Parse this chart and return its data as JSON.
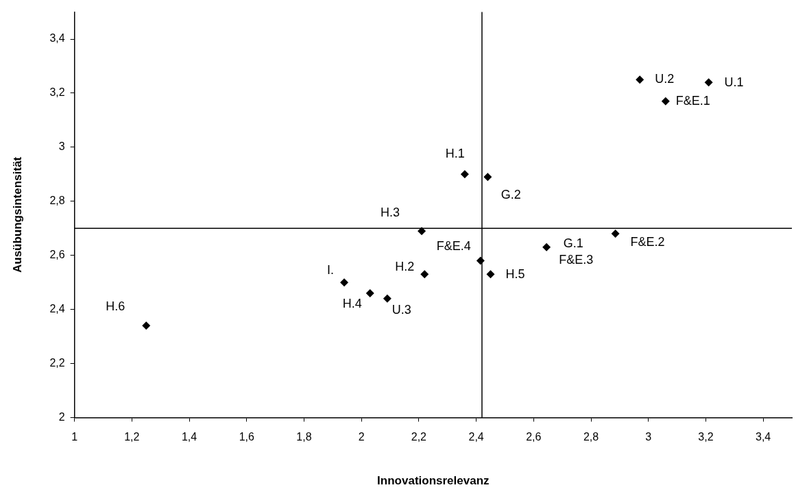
{
  "chart_data": {
    "type": "scatter",
    "xlabel": "Innovationsrelevanz",
    "ylabel": "Ausübungsintensität",
    "x": [
      1.25,
      1.94,
      2.03,
      2.09,
      2.22,
      2.36,
      2.44,
      2.21,
      2.415,
      2.45,
      2.645,
      2.885,
      2.97,
      3.21,
      3.06
    ],
    "series": [
      {
        "color": "#000000",
        "values": [
          2.34,
          2.5,
          2.46,
          2.44,
          2.53,
          2.9,
          2.89,
          2.69,
          2.58,
          2.53,
          2.63,
          2.68,
          3.25,
          3.24,
          3.17
        ]
      }
    ],
    "annotations": [
      {
        "text": "H.6",
        "x": 1.25,
        "y": 2.34
      },
      {
        "text": "I.",
        "x": 1.94,
        "y": 2.5
      },
      {
        "text": "H.4",
        "x": 2.03,
        "y": 2.46
      },
      {
        "text": "U.3",
        "x": 2.09,
        "y": 2.44
      },
      {
        "text": "H.2",
        "x": 2.22,
        "y": 2.53
      },
      {
        "text": "H.1",
        "x": 2.36,
        "y": 2.9
      },
      {
        "text": "G.2",
        "x": 2.44,
        "y": 2.89
      },
      {
        "text": "H.3",
        "x": 2.21,
        "y": 2.69
      },
      {
        "text": "F&E.4",
        "x": 2.415,
        "y": 2.58
      },
      {
        "text": "H.5",
        "x": 2.45,
        "y": 2.53
      },
      {
        "text": "G.1",
        "x": 2.645,
        "y": 2.63
      },
      {
        "text": "F&E.3",
        "x": 2.645,
        "y": 2.63
      },
      {
        "text": "F&E.2",
        "x": 2.885,
        "y": 2.68
      },
      {
        "text": "U.2",
        "x": 2.97,
        "y": 3.25
      },
      {
        "text": "U.1",
        "x": 3.21,
        "y": 3.24
      },
      {
        "text": "F&E.1",
        "x": 3.06,
        "y": 3.17
      }
    ],
    "ref_lines": [
      {
        "axis": "x",
        "value": 2.42,
        "color": "#000000"
      },
      {
        "axis": "y",
        "value": 2.7,
        "color": "#000000"
      }
    ],
    "xlim": [
      1,
      3.5
    ],
    "xticks": [
      1,
      {
        "value": 1.2,
        "label": "1,2"
      },
      {
        "value": 1.4,
        "label": "1,4"
      },
      {
        "value": 1.6,
        "label": "1,6"
      },
      {
        "value": 1.8,
        "label": "1,8"
      },
      2,
      {
        "value": 2.2,
        "label": "2,2"
      },
      {
        "value": 2.4,
        "label": "2,4"
      },
      {
        "value": 2.6,
        "label": "2,6"
      },
      {
        "value": 2.8,
        "label": "2,8"
      },
      3,
      {
        "value": 3.2,
        "label": "3,2"
      },
      {
        "value": 3.4,
        "label": "3,4"
      }
    ],
    "ylim": [
      2,
      3.5
    ],
    "yticks": [
      2,
      {
        "value": 2.2,
        "label": "2,2"
      },
      {
        "value": 2.4,
        "label": "2,4"
      },
      {
        "value": 2.6,
        "label": "2,6"
      },
      {
        "value": 2.8,
        "label": "2,8"
      },
      3,
      {
        "value": 3.2,
        "label": "3,2"
      },
      {
        "value": 3.4,
        "label": "3,4"
      }
    ],
    "grid": false,
    "legend": false,
    "marker": "diamond"
  }
}
